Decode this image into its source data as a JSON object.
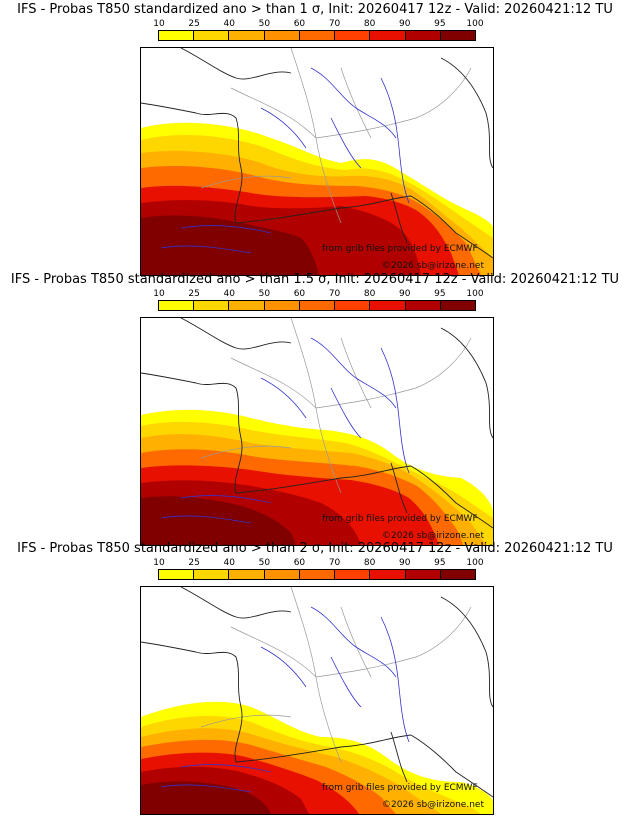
{
  "colorbar": {
    "ticks": [
      "10",
      "25",
      "40",
      "50",
      "60",
      "70",
      "80",
      "90",
      "95",
      "100"
    ],
    "colors": [
      "#ffff00",
      "#ffd700",
      "#ffb000",
      "#ff9000",
      "#ff6a00",
      "#ff4000",
      "#e81000",
      "#b00000",
      "#800000"
    ]
  },
  "panels": [
    {
      "title": "IFS - Probas T850  standardized ano > than 1 σ, Init: 20260417 12z - Valid: 20260421:12 TU",
      "credit_source": "from grib files provided by ECMWF",
      "credit_copyright": "©2026 sb@irizone.net"
    },
    {
      "title": "IFS - Probas T850  standardized ano > than 1.5 σ, Init: 20260417 12z - Valid: 20260421:12 TU",
      "credit_source": "from grib files provided by ECMWF",
      "credit_copyright": "©2026 sb@irizone.net"
    },
    {
      "title": "IFS - Probas T850  standardized ano > than 2 σ, Init: 20260417 12z - Valid: 20260421:12 TU",
      "credit_source": "from grib files provided by ECMWF",
      "credit_copyright": "©2026 sb@irizone.net"
    }
  ]
}
